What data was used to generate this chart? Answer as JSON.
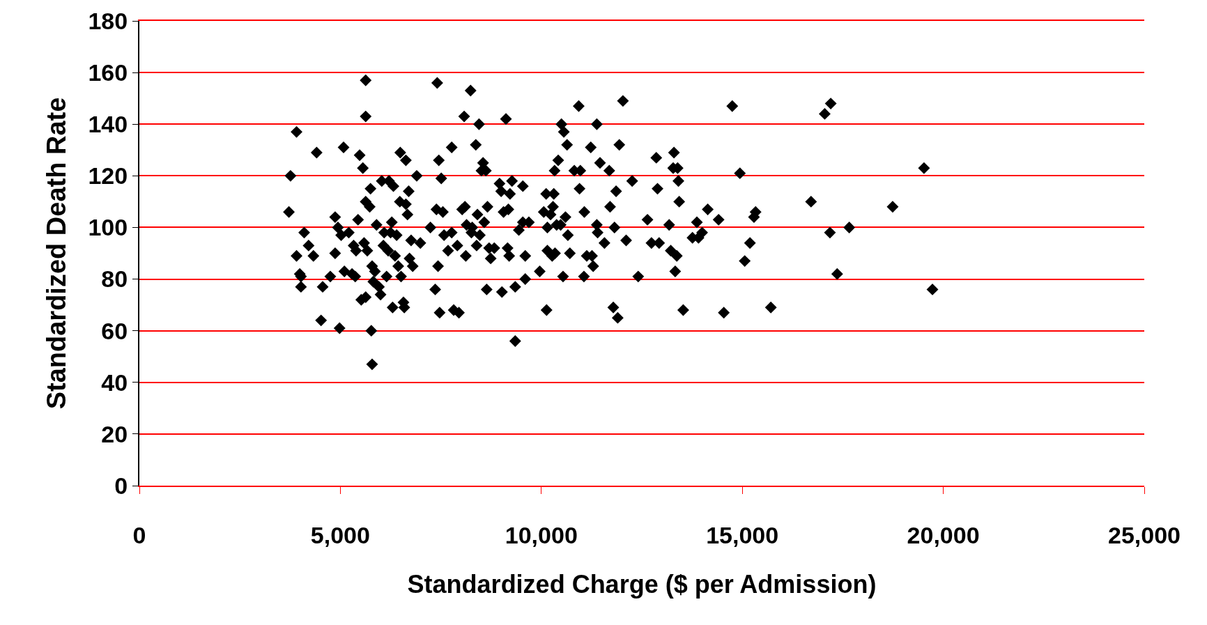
{
  "chart_data": {
    "type": "scatter",
    "xlabel": "Standardized Charge ($ per Admission)",
    "ylabel": "Standardized Death Rate",
    "xlim": [
      0,
      25000
    ],
    "xticks": [
      0,
      {
        "value": 5000,
        "label": "5,000"
      },
      {
        "value": 10000,
        "label": "10,000"
      },
      {
        "value": 15000,
        "label": "15,000"
      },
      {
        "value": 20000,
        "label": "20,000"
      },
      {
        "value": 25000,
        "label": "25,000"
      }
    ],
    "ylim": [
      0,
      180
    ],
    "yticks": [
      0,
      20,
      40,
      60,
      80,
      100,
      120,
      140,
      160,
      180
    ],
    "grid": "y",
    "marker": "diamond",
    "series": [
      {
        "color": "#000000",
        "x": [
          3720,
          3760,
          3910,
          3910,
          3990,
          4020,
          4020,
          4100,
          4210,
          4330,
          4410,
          4520,
          4560,
          4750,
          4870,
          4870,
          4940,
          4980,
          5020,
          5080,
          5100,
          5210,
          5290,
          5330,
          5370,
          5390,
          5440,
          5480,
          5520,
          5560,
          5590,
          5630,
          5630,
          5630,
          5630,
          5670,
          5730,
          5750,
          5770,
          5790,
          5790,
          5820,
          5860,
          5900,
          5960,
          6000,
          6030,
          6070,
          6090,
          6150,
          6190,
          6210,
          6250,
          6280,
          6300,
          6320,
          6360,
          6400,
          6440,
          6480,
          6490,
          6510,
          6570,
          6590,
          6630,
          6630,
          6670,
          6700,
          6720,
          6760,
          6800,
          6900,
          6990,
          7240,
          7360,
          7390,
          7410,
          7430,
          7450,
          7470,
          7510,
          7550,
          7580,
          7680,
          7770,
          7770,
          7820,
          7910,
          7950,
          8030,
          8080,
          8100,
          8120,
          8140,
          8240,
          8260,
          8280,
          8370,
          8390,
          8410,
          8450,
          8470,
          8510,
          8550,
          8580,
          8620,
          8640,
          8660,
          8700,
          8740,
          8830,
          8960,
          9000,
          9020,
          9060,
          9120,
          9160,
          9180,
          9200,
          9220,
          9270,
          9350,
          9350,
          9440,
          9540,
          9540,
          9600,
          9600,
          9690,
          9960,
          10060,
          10120,
          10130,
          10150,
          10150,
          10230,
          10270,
          10290,
          10310,
          10330,
          10340,
          10380,
          10420,
          10480,
          10540,
          10500,
          10560,
          10600,
          10640,
          10660,
          10710,
          10820,
          10930,
          10950,
          10970,
          11060,
          11070,
          11130,
          11230,
          11260,
          11290,
          11380,
          11380,
          11400,
          11460,
          11570,
          11690,
          11710,
          11790,
          11820,
          11860,
          11900,
          11940,
          12030,
          12110,
          12260,
          12410,
          12640,
          12740,
          12860,
          12890,
          12930,
          13180,
          13220,
          13280,
          13300,
          13330,
          13370,
          13390,
          13410,
          13430,
          13530,
          13760,
          13870,
          13910,
          14000,
          14140,
          14410,
          14540,
          14750,
          14940,
          15060,
          15190,
          15290,
          15330,
          15710,
          16710,
          17050,
          17200,
          17180,
          17360,
          17660,
          18740,
          19520,
          19730
        ],
        "values": [
          106,
          120,
          137,
          89,
          82,
          81,
          77,
          98,
          93,
          89,
          129,
          64,
          77,
          81,
          90,
          104,
          100,
          61,
          97,
          131,
          83,
          98,
          82,
          93,
          81,
          91,
          103,
          128,
          72,
          123,
          94,
          110,
          73,
          143,
          157,
          91,
          108,
          115,
          60,
          85,
          47,
          79,
          83,
          101,
          77,
          74,
          118,
          93,
          98,
          81,
          91,
          118,
          98,
          102,
          69,
          116,
          89,
          97,
          85,
          110,
          129,
          81,
          71,
          69,
          109,
          126,
          105,
          114,
          88,
          95,
          85,
          120,
          94,
          100,
          76,
          107,
          156,
          85,
          126,
          67,
          119,
          106,
          97,
          91,
          131,
          98,
          68,
          93,
          67,
          107,
          143,
          108,
          89,
          101,
          153,
          98,
          100,
          132,
          93,
          105,
          140,
          97,
          122,
          125,
          102,
          122,
          76,
          108,
          92,
          88,
          92,
          117,
          114,
          75,
          106,
          142,
          92,
          107,
          89,
          113,
          118,
          56,
          77,
          99,
          116,
          102,
          89,
          80,
          102,
          83,
          106,
          113,
          68,
          100,
          91,
          105,
          89,
          108,
          113,
          122,
          90,
          101,
          126,
          101,
          81,
          140,
          137,
          104,
          132,
          97,
          90,
          122,
          147,
          115,
          122,
          81,
          106,
          89,
          131,
          89,
          85,
          140,
          101,
          98,
          125,
          94,
          122,
          108,
          69,
          100,
          114,
          65,
          132,
          149,
          95,
          118,
          81,
          103,
          94,
          127,
          115,
          94,
          101,
          91,
          123,
          129,
          83,
          89,
          123,
          118,
          110,
          68,
          96,
          102,
          96,
          98,
          107,
          103,
          67,
          147,
          121,
          87,
          94,
          104,
          106,
          69,
          110,
          144,
          148,
          98,
          82,
          100,
          108,
          123,
          76
        ]
      }
    ]
  }
}
